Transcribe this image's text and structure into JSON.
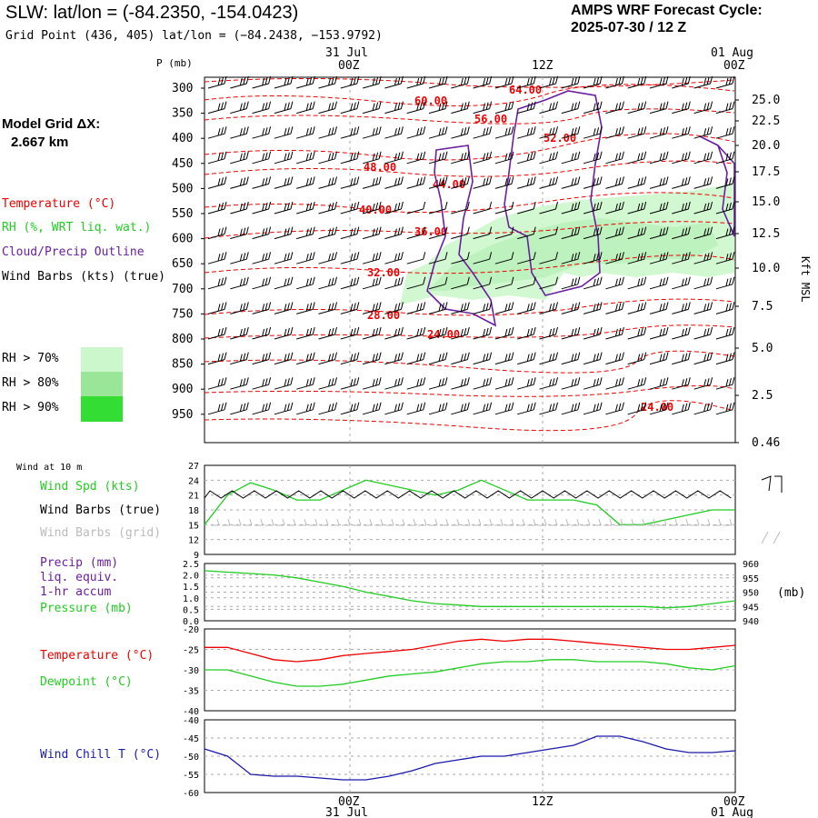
{
  "header": {
    "title": "SLW:  lat/lon = (-84.2350, -154.0423)",
    "subtitle": "Grid Point (436, 405) lat/lon = (−84.2438, −153.9792)",
    "cycle_line1": "AMPS WRF Forecast Cycle:",
    "cycle_line2": "2025-07-30 / 12  Z"
  },
  "left_panel": {
    "grid_label": "Model Grid ΔX:",
    "grid_value": "2.667 km",
    "legend_temp": "Temperature (°C)",
    "legend_rh": "RH (%, WRT liq. wat.)",
    "legend_cloud": "Cloud/Precip Outline",
    "legend_wind": "Wind Barbs (kts) (true)",
    "rh70": "RH > 70%",
    "rh80": "RH > 80%",
    "rh90": "RH > 90%",
    "wind10m": "Wind at 10 m",
    "wind_spd": "Wind Spd (kts)",
    "wind_barbs_true": "Wind Barbs (true)",
    "wind_barbs_grid": "Wind Barbs (grid)",
    "precip1": "Precip (mm)",
    "precip2": "liq. equiv.",
    "precip3": "1-hr accum",
    "pressure": "Pressure (mb)",
    "temperature": "Temperature (°C)",
    "dewpoint": "Dewpoint (°C)",
    "windchill": "Wind Chill T (°C)"
  },
  "colors": {
    "temp": "#ee0000",
    "rh": "#22cc22",
    "cloud": "#6a1fa0",
    "windchill": "#1a1aaa",
    "rh70": "#ccf7cc",
    "rh80": "#99e699",
    "rh90": "#33dd33",
    "grid": "#aaaaaa"
  },
  "chart_data": [
    {
      "type": "line",
      "name": "sounding cross-section",
      "xlabel_top": "",
      "time_ticks": [
        {
          "label": "00Z",
          "date": "31 Jul"
        },
        {
          "label": "12Z",
          "date": ""
        },
        {
          "label": "00Z",
          "date": "01 Aug"
        }
      ],
      "ylabel": "P (mb)",
      "pressure_ticks": [
        "300",
        "350",
        "400",
        "450",
        "500",
        "550",
        "600",
        "650",
        "700",
        "750",
        "800",
        "850",
        "900",
        "950"
      ],
      "right_axis_label": "Kft MSL",
      "height_ticks": [
        "25.0",
        "22.5",
        "20.0",
        "17.5",
        "15.0",
        "12.5",
        "10.0",
        "7.5",
        "5.0",
        "2.5",
        "0.46"
      ],
      "temp_contour_labels": [
        "64.00",
        "60.00",
        "56.00",
        "52.00",
        "48.00",
        "44.00",
        "40.00",
        "36.00",
        "32.00",
        "28.00",
        "24.00",
        "24.00"
      ],
      "legend": [
        "Temperature (°C)",
        "RH (%, WRT liq. wat.)",
        "Cloud/Precip Outline",
        "Wind Barbs (kts) (true)"
      ]
    },
    {
      "type": "line",
      "name": "10 m wind speed",
      "ylim": [
        9,
        27
      ],
      "yticks": [
        "27",
        "24",
        "21",
        "18",
        "15",
        "12",
        "9"
      ],
      "series": [
        {
          "name": "Wind Spd (kts)",
          "values": [
            15,
            21,
            23.5,
            22,
            20,
            20,
            22,
            24,
            23,
            22,
            21,
            22,
            24,
            22,
            20,
            20,
            20,
            19,
            15,
            15,
            16,
            17,
            18,
            18
          ]
        }
      ]
    },
    {
      "type": "line",
      "name": "precip and pressure",
      "ylim_left": [
        0,
        2.5
      ],
      "yticks_left": [
        "2.5",
        "2.0",
        "1.5",
        "1.0",
        "0.5",
        "0.0"
      ],
      "ylim_right": [
        940,
        960
      ],
      "yticks_right": [
        "960",
        "955",
        "950",
        "945",
        "940"
      ],
      "right_unit": "(mb)",
      "series": [
        {
          "name": "Pressure (mb)",
          "values": [
            957.5,
            957,
            956.5,
            956,
            955,
            953.5,
            952,
            950,
            948.5,
            947,
            946,
            945.5,
            945,
            945,
            945,
            945,
            945,
            945,
            945,
            945,
            944.5,
            945,
            946,
            947
          ]
        }
      ]
    },
    {
      "type": "line",
      "name": "temperature and dewpoint",
      "ylim": [
        -40,
        -20
      ],
      "yticks": [
        "-20",
        "-25",
        "-30",
        "-35",
        "-40"
      ],
      "series": [
        {
          "name": "Temperature (°C)",
          "values": [
            -24.5,
            -24.5,
            -26,
            -27.5,
            -28,
            -27.5,
            -26.5,
            -26,
            -25.5,
            -25,
            -24,
            -23,
            -22.5,
            -23,
            -22.5,
            -22.5,
            -23,
            -23.5,
            -24,
            -24.5,
            -25,
            -25,
            -24.5,
            -24
          ]
        },
        {
          "name": "Dewpoint (°C)",
          "values": [
            -30,
            -30,
            -31.5,
            -33,
            -34,
            -34,
            -33.5,
            -32.5,
            -31.5,
            -31,
            -30.5,
            -29.5,
            -28.5,
            -28,
            -28,
            -27.5,
            -27.5,
            -28,
            -28,
            -28,
            -28.5,
            -29.5,
            -30,
            -29
          ]
        }
      ]
    },
    {
      "type": "line",
      "name": "wind chill",
      "ylim": [
        -60,
        -40
      ],
      "yticks": [
        "-40",
        "-45",
        "-50",
        "-55",
        "-60"
      ],
      "series": [
        {
          "name": "Wind Chill T (°C)",
          "values": [
            -48,
            -50,
            -55,
            -55.5,
            -55.5,
            -56,
            -56.5,
            -56.5,
            -55.5,
            -54,
            -52,
            -51,
            -50,
            -50,
            -49,
            -48,
            -47,
            -44.5,
            -44.5,
            -46,
            -48,
            -49,
            -49,
            -48.5
          ]
        }
      ]
    }
  ]
}
